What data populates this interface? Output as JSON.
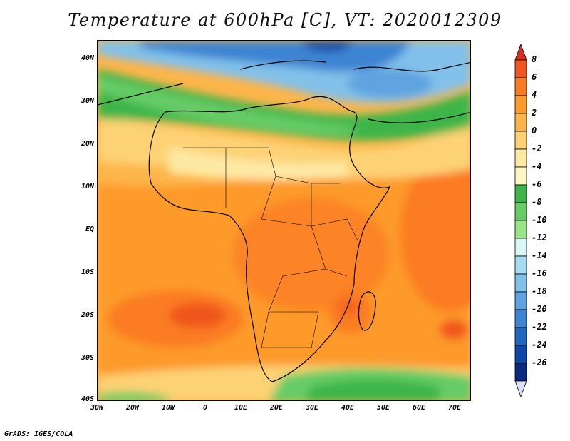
{
  "title": "Temperature at 600hPa [C], VT: 2020012309",
  "credit": "GrADS: IGES/COLA",
  "map": {
    "lat_labels": [
      "40N",
      "30N",
      "20N",
      "10N",
      "EQ",
      "10S",
      "20S",
      "30S",
      "40S"
    ],
    "lon_labels": [
      "30W",
      "20W",
      "10W",
      "0",
      "10E",
      "20E",
      "30E",
      "40E",
      "50E",
      "60E",
      "70E"
    ]
  },
  "colorbar": {
    "labels": [
      "8",
      "6",
      "4",
      "2",
      "0",
      "-2",
      "-4",
      "-6",
      "-8",
      "-10",
      "-12",
      "-14",
      "-16",
      "-18",
      "-20",
      "-22",
      "-24",
      "-26"
    ],
    "colors": [
      "#d7301f",
      "#f0561f",
      "#fb7b24",
      "#fd9a2c",
      "#fdb54a",
      "#fdd275",
      "#fee9a4",
      "#fff7c6",
      "#3cb54a",
      "#66cc66",
      "#99e68a",
      "#d9f7f4",
      "#a6dcf2",
      "#82c1ea",
      "#5fa3e0",
      "#3d84d2",
      "#2166c0",
      "#0f47a6",
      "#0a2a80",
      "#ddddff"
    ]
  }
}
